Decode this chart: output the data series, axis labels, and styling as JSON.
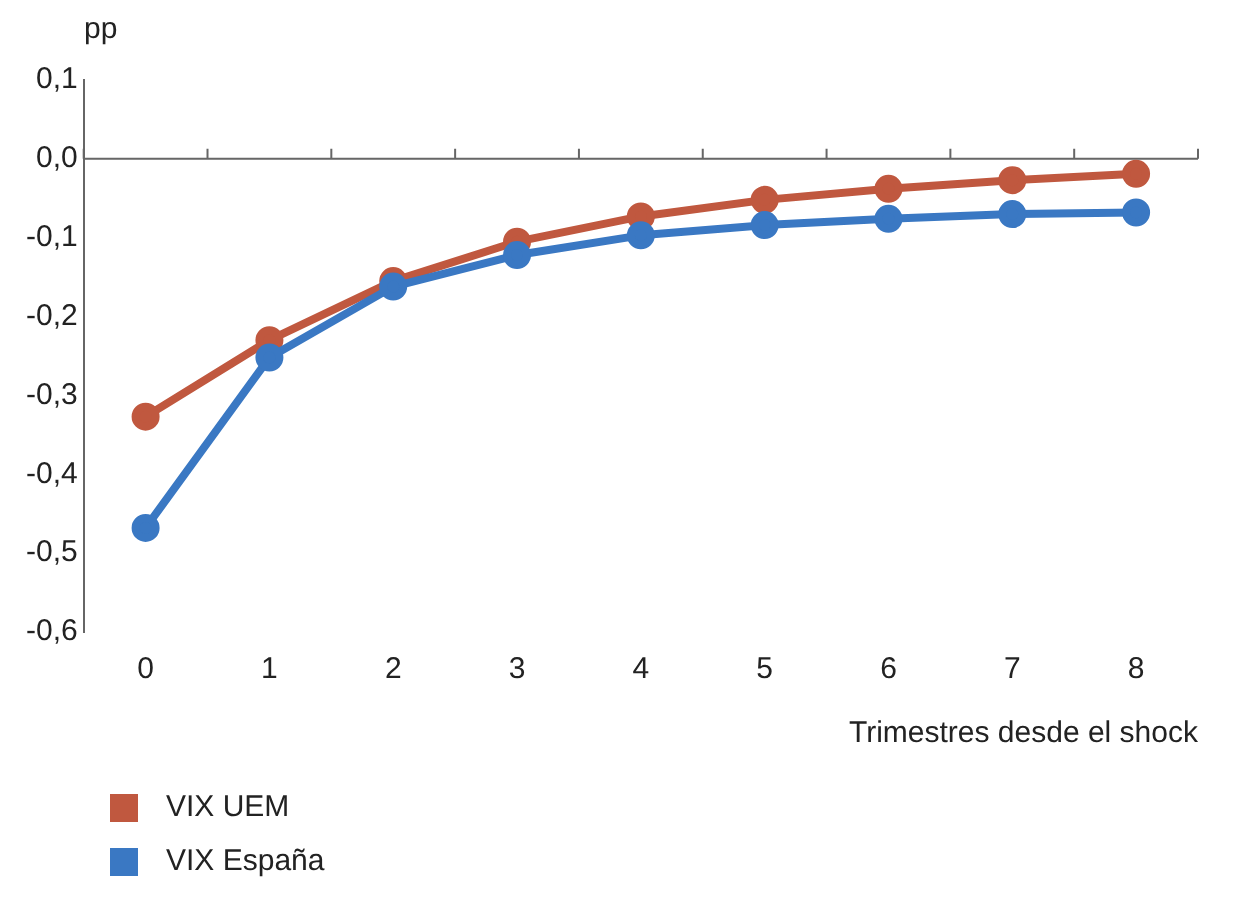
{
  "chart_data": {
    "type": "line",
    "ylabel": "pp",
    "xlabel": "Trimestres desde el shock",
    "categories": [
      "0",
      "1",
      "2",
      "3",
      "4",
      "5",
      "6",
      "7",
      "8"
    ],
    "series": [
      {
        "name": "VIX UEM",
        "color": "#c0583f",
        "values": [
          -0.327,
          -0.23,
          -0.155,
          -0.105,
          -0.073,
          -0.052,
          -0.038,
          -0.027,
          -0.019
        ]
      },
      {
        "name": "VIX España",
        "color": "#3a78c3",
        "values": [
          -0.468,
          -0.252,
          -0.162,
          -0.122,
          -0.097,
          -0.084,
          -0.076,
          -0.07,
          -0.068
        ]
      }
    ],
    "ylim": [
      -0.6,
      0.1
    ],
    "yticks": [
      {
        "value": 0.1,
        "label": "0,1"
      },
      {
        "value": 0,
        "label": "0,0"
      },
      {
        "value": -0.1,
        "label": "-0,1"
      },
      {
        "value": -0.2,
        "label": "-0,2"
      },
      {
        "value": -0.3,
        "label": "-0,3"
      },
      {
        "value": -0.4,
        "label": "-0,4"
      },
      {
        "value": -0.5,
        "label": "-0,5"
      },
      {
        "value": -0.6,
        "label": "-0,6"
      }
    ],
    "ref_lines": [
      {
        "axis": "y",
        "value": 0,
        "color": "#666666"
      }
    ],
    "grid": false,
    "legend": "bottom left",
    "marker": "circle",
    "line_style": "solid"
  }
}
